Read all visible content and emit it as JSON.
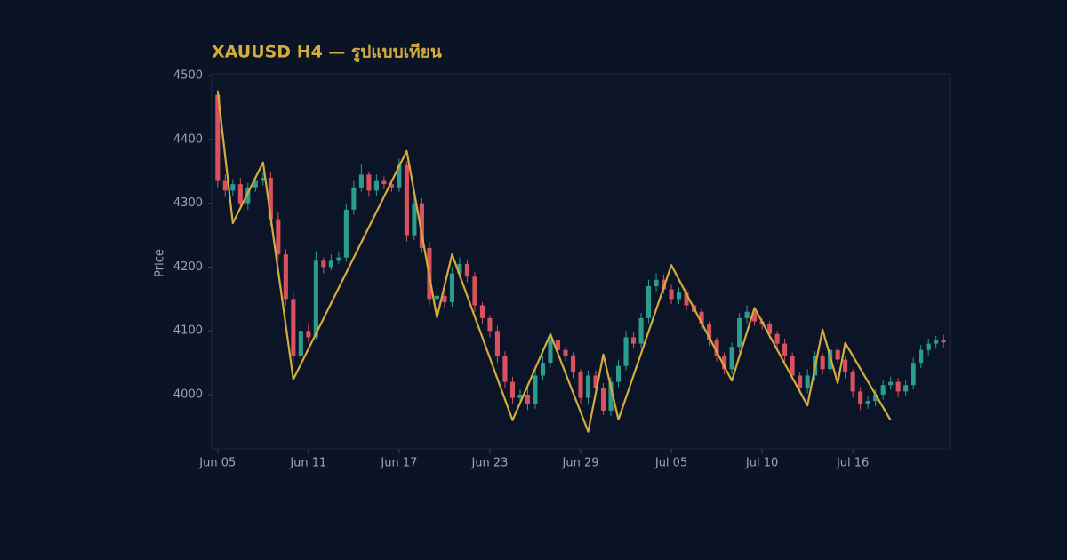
{
  "chart_data": {
    "type": "candlestick",
    "title": "XAUUSD H4 — รูปแบบเทียน",
    "ylabel": "Price",
    "xlim": [
      -0.8,
      96.8
    ],
    "ylim": [
      3915,
      4503
    ],
    "yticks": [
      4000,
      4100,
      4200,
      4300,
      4400,
      4500
    ],
    "xticks": [
      {
        "value": 0,
        "label": "Jun 05"
      },
      {
        "value": 12,
        "label": "Jun 11"
      },
      {
        "value": 24,
        "label": "Jun 17"
      },
      {
        "value": 36,
        "label": "Jun 23"
      },
      {
        "value": 48,
        "label": "Jun 29"
      },
      {
        "value": 60,
        "label": "Jul 05"
      },
      {
        "value": 72,
        "label": "Jul 10"
      },
      {
        "value": 84,
        "label": "Jul 16"
      }
    ],
    "up_color": "#2a9d8f",
    "down_color": "#d9505e",
    "x": [
      0,
      1,
      2,
      3,
      4,
      5,
      6,
      7,
      8,
      9,
      10,
      11,
      12,
      13,
      14,
      15,
      16,
      17,
      18,
      19,
      20,
      21,
      22,
      23,
      24,
      25,
      26,
      27,
      28,
      29,
      30,
      31,
      32,
      33,
      34,
      35,
      36,
      37,
      38,
      39,
      40,
      41,
      42,
      43,
      44,
      45,
      46,
      47,
      48,
      49,
      50,
      51,
      52,
      53,
      54,
      55,
      56,
      57,
      58,
      59,
      60,
      61,
      62,
      63,
      64,
      65,
      66,
      67,
      68,
      69,
      70,
      71,
      72,
      73,
      74,
      75,
      76,
      77,
      78,
      79,
      80,
      81,
      82,
      83,
      84,
      85,
      86,
      87,
      88,
      89,
      90,
      91,
      92,
      93,
      94,
      95,
      96
    ],
    "open": [
      4470,
      4335,
      4320,
      4330,
      4300,
      4325,
      4335,
      4340,
      4275,
      4220,
      4150,
      4060,
      4100,
      4090,
      4210,
      4200,
      4210,
      4215,
      4290,
      4325,
      4345,
      4320,
      4335,
      4330,
      4325,
      4360,
      4250,
      4300,
      4230,
      4150,
      4155,
      4145,
      4190,
      4205,
      4185,
      4140,
      4120,
      4100,
      4060,
      4020,
      3995,
      4000,
      3985,
      4030,
      4050,
      4085,
      4070,
      4060,
      4035,
      3995,
      4030,
      4010,
      3975,
      4020,
      4045,
      4090,
      4080,
      4120,
      4170,
      4180,
      4165,
      4150,
      4160,
      4140,
      4130,
      4110,
      4085,
      4060,
      4040,
      4075,
      4120,
      4130,
      4115,
      4110,
      4095,
      4080,
      4060,
      4030,
      4010,
      4030,
      4060,
      4040,
      4070,
      4055,
      4035,
      4005,
      3985,
      3990,
      4000,
      4015,
      4020,
      4005,
      4015,
      4050,
      4070,
      4080,
      4085
    ],
    "high": [
      4478,
      4345,
      4338,
      4340,
      4332,
      4340,
      4348,
      4350,
      4285,
      4228,
      4160,
      4110,
      4112,
      4225,
      4215,
      4220,
      4225,
      4300,
      4335,
      4362,
      4350,
      4345,
      4342,
      4338,
      4370,
      4366,
      4310,
      4308,
      4240,
      4165,
      4160,
      4200,
      4215,
      4212,
      4192,
      4145,
      4125,
      4108,
      4068,
      4028,
      4008,
      4010,
      4040,
      4060,
      4095,
      4092,
      4075,
      4066,
      4040,
      4038,
      4038,
      4018,
      4028,
      4055,
      4100,
      4098,
      4128,
      4180,
      4190,
      4188,
      4172,
      4168,
      4165,
      4145,
      4135,
      4115,
      4090,
      4066,
      4082,
      4128,
      4140,
      4135,
      4120,
      4115,
      4100,
      4088,
      4066,
      4036,
      4040,
      4068,
      4065,
      4078,
      4075,
      4060,
      4040,
      4012,
      3998,
      4008,
      4022,
      4028,
      4026,
      4022,
      4058,
      4078,
      4088,
      4092,
      4094
    ],
    "low": [
      4325,
      4310,
      4312,
      4292,
      4290,
      4318,
      4328,
      4265,
      4210,
      4140,
      4050,
      4052,
      4082,
      4085,
      4190,
      4195,
      4205,
      4208,
      4282,
      4318,
      4310,
      4312,
      4322,
      4318,
      4318,
      4240,
      4242,
      4222,
      4140,
      4142,
      4136,
      4138,
      4182,
      4176,
      4130,
      4110,
      4090,
      4050,
      4010,
      3985,
      3986,
      3976,
      3978,
      4022,
      4042,
      4062,
      4052,
      4026,
      3986,
      3986,
      4000,
      3968,
      3966,
      4012,
      4038,
      4072,
      4072,
      4112,
      4162,
      4158,
      4142,
      4142,
      4132,
      4122,
      4102,
      4076,
      4052,
      4032,
      4032,
      4066,
      4112,
      4108,
      4102,
      4088,
      4072,
      4052,
      4022,
      4002,
      4002,
      4022,
      4032,
      4032,
      4048,
      4026,
      3996,
      3976,
      3978,
      3982,
      3992,
      4008,
      3996,
      3998,
      4008,
      4042,
      4062,
      4072,
      4074
    ],
    "close": [
      4335,
      4320,
      4330,
      4300,
      4325,
      4335,
      4340,
      4275,
      4220,
      4150,
      4060,
      4100,
      4090,
      4210,
      4200,
      4210,
      4215,
      4290,
      4325,
      4345,
      4320,
      4335,
      4330,
      4325,
      4360,
      4250,
      4300,
      4230,
      4150,
      4155,
      4145,
      4190,
      4205,
      4185,
      4140,
      4120,
      4100,
      4060,
      4020,
      3995,
      4000,
      3985,
      4030,
      4050,
      4085,
      4070,
      4060,
      4035,
      3995,
      4030,
      4010,
      3975,
      4020,
      4045,
      4090,
      4080,
      4120,
      4170,
      4180,
      4165,
      4150,
      4160,
      4140,
      4130,
      4110,
      4085,
      4060,
      4040,
      4075,
      4120,
      4130,
      4115,
      4110,
      4095,
      4080,
      4060,
      4030,
      4010,
      4030,
      4060,
      4040,
      4070,
      4055,
      4035,
      4005,
      3985,
      3990,
      4000,
      4015,
      4020,
      4005,
      4015,
      4050,
      4070,
      4080,
      4085,
      4082
    ],
    "overlay": {
      "type": "line",
      "color": "#d4ac3c",
      "x": [
        0,
        2,
        6,
        10,
        25,
        29,
        31,
        39,
        44,
        49,
        51,
        53,
        60,
        68,
        71,
        78,
        80,
        82,
        83,
        89
      ],
      "values": [
        4476,
        4269,
        4364,
        4024,
        4382,
        4121,
        4220,
        3960,
        4095,
        3942,
        4063,
        3961,
        4203,
        4022,
        4136,
        3983,
        4102,
        4018,
        4081,
        3960
      ]
    }
  }
}
